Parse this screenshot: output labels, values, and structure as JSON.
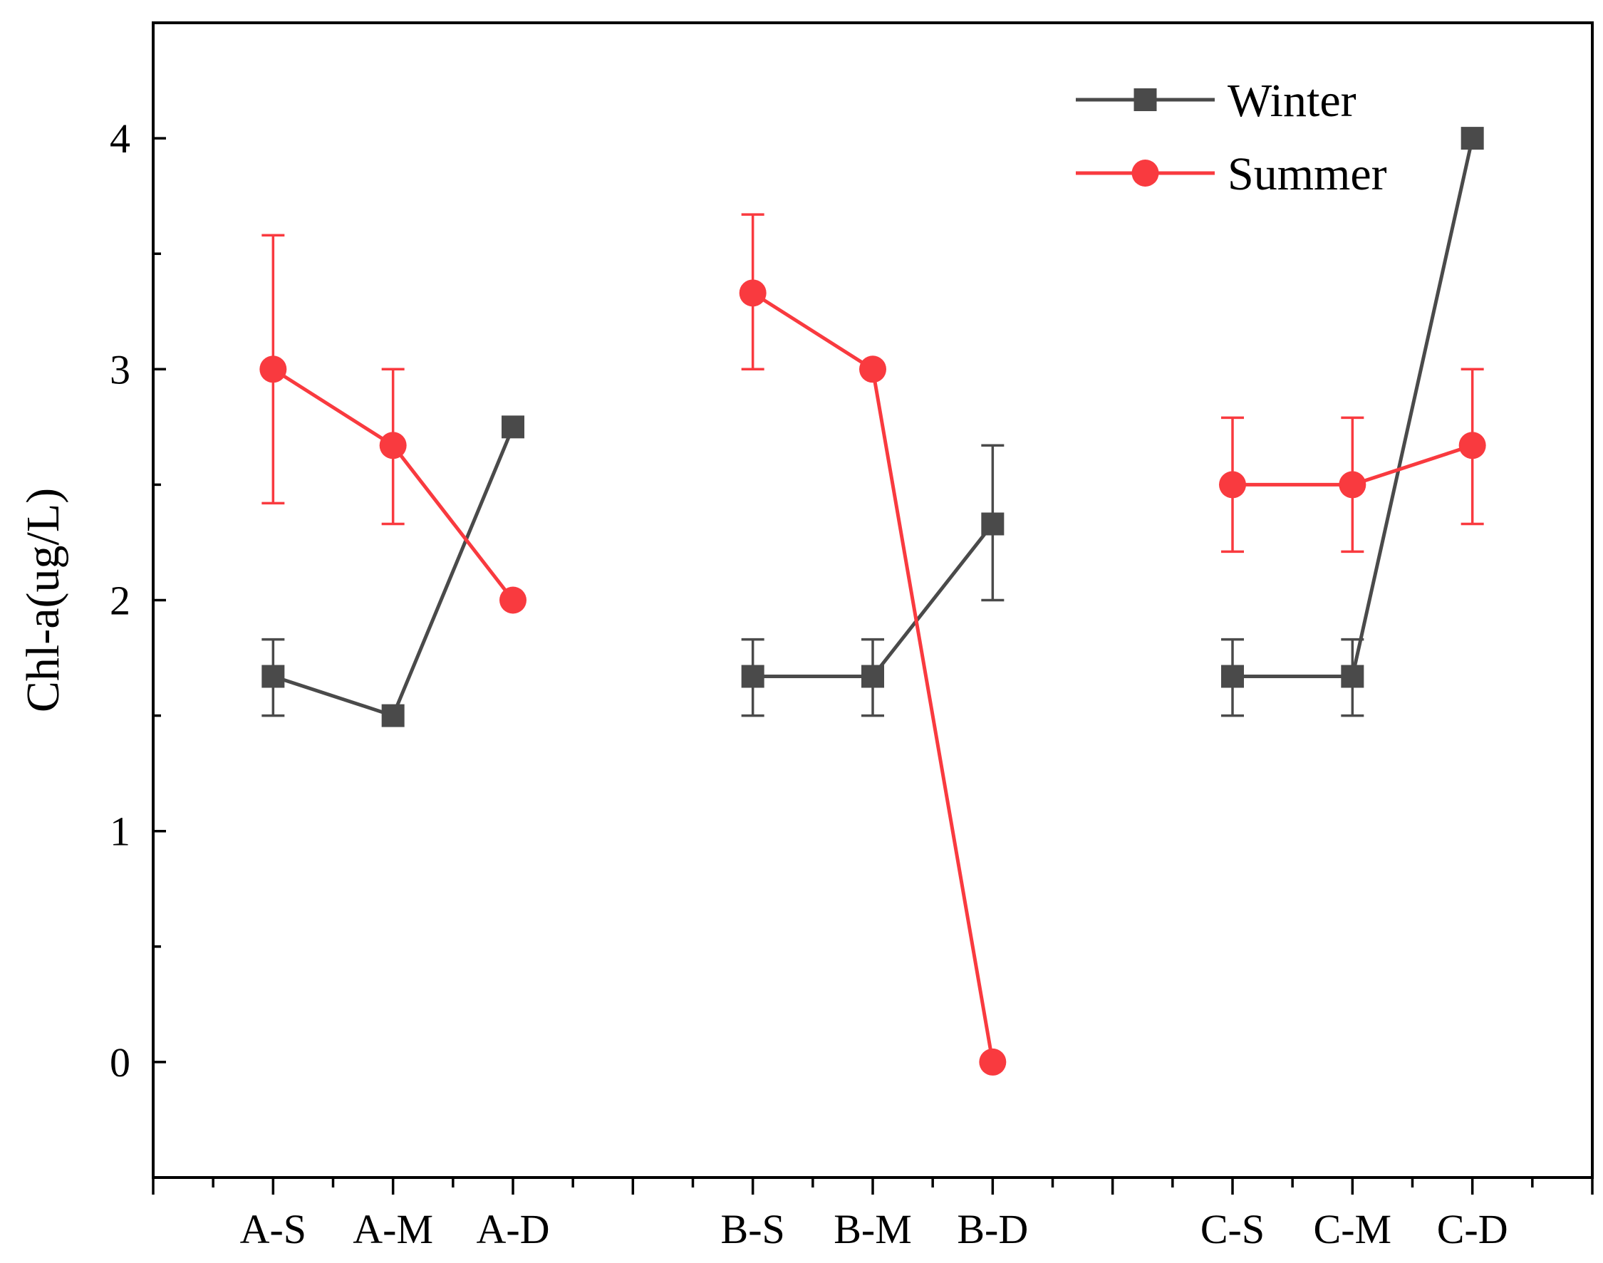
{
  "chart_data": {
    "type": "line",
    "title": "",
    "xlabel": "",
    "ylabel": "Chl-a(ug/L)",
    "ylim": [
      -0.5,
      4.5
    ],
    "yticks": [
      0,
      1,
      2,
      3,
      4
    ],
    "categories": [
      "A-S",
      "A-M",
      "A-D",
      "",
      "B-S",
      "B-M",
      "B-D",
      "",
      "C-S",
      "C-M",
      "C-D"
    ],
    "legend_position": "top-right",
    "grid": false,
    "series": [
      {
        "name": "Winter",
        "color": "#4a4a4a",
        "marker": "square",
        "values": [
          1.67,
          1.5,
          2.75,
          null,
          1.67,
          1.67,
          2.33,
          null,
          1.67,
          1.67,
          4.0
        ],
        "err_low": [
          1.5,
          1.5,
          2.75,
          null,
          1.5,
          1.5,
          2.0,
          null,
          1.5,
          1.5,
          4.0
        ],
        "err_high": [
          1.83,
          1.5,
          2.75,
          null,
          1.83,
          1.83,
          2.67,
          null,
          1.83,
          1.83,
          4.0
        ]
      },
      {
        "name": "Summer",
        "color": "#f93a3f",
        "marker": "circle",
        "values": [
          3.0,
          2.67,
          2.0,
          null,
          3.33,
          3.0,
          0.0,
          null,
          2.5,
          2.5,
          2.67
        ],
        "err_low": [
          2.42,
          2.33,
          2.0,
          null,
          3.0,
          3.0,
          0.0,
          null,
          2.21,
          2.21,
          2.33
        ],
        "err_high": [
          3.58,
          3.0,
          2.0,
          null,
          3.67,
          3.0,
          0.0,
          null,
          2.79,
          2.79,
          3.0
        ]
      }
    ]
  }
}
